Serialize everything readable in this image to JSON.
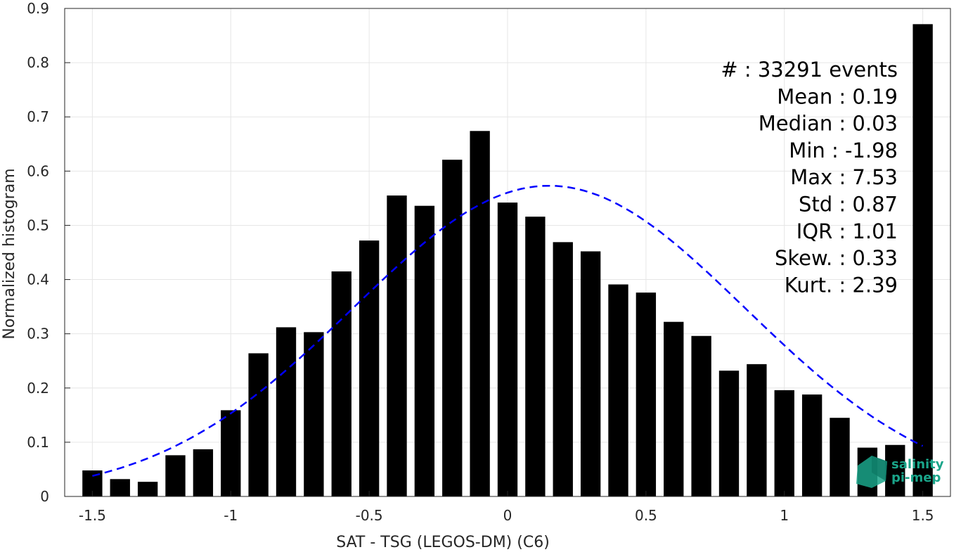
{
  "chart_data": {
    "type": "bar",
    "xlabel": "SAT - TSG (LEGOS-DM) (C6)",
    "ylabel": "Normalized histogram",
    "xlim": [
      -1.6,
      1.6
    ],
    "ylim": [
      0,
      0.9
    ],
    "grid": true,
    "x_ticks": [
      {
        "v": -1.5,
        "label": "-1.5"
      },
      {
        "v": -1,
        "label": "-1"
      },
      {
        "v": -0.5,
        "label": "-0.5"
      },
      {
        "v": 0,
        "label": "0"
      },
      {
        "v": 0.5,
        "label": "0.5"
      },
      {
        "v": 1,
        "label": "1"
      },
      {
        "v": 1.5,
        "label": "1.5"
      }
    ],
    "y_ticks": [
      {
        "v": 0,
        "label": "0"
      },
      {
        "v": 0.1,
        "label": "0.1"
      },
      {
        "v": 0.2,
        "label": "0.2"
      },
      {
        "v": 0.3,
        "label": "0.3"
      },
      {
        "v": 0.4,
        "label": "0.4"
      },
      {
        "v": 0.5,
        "label": "0.5"
      },
      {
        "v": 0.6,
        "label": "0.6"
      },
      {
        "v": 0.7,
        "label": "0.7"
      },
      {
        "v": 0.8,
        "label": "0.8"
      },
      {
        "v": 0.9,
        "label": "0.9"
      }
    ],
    "bin_width": 0.1,
    "bins": [
      {
        "x": -1.5,
        "y": 0.048
      },
      {
        "x": -1.4,
        "y": 0.032
      },
      {
        "x": -1.3,
        "y": 0.027
      },
      {
        "x": -1.2,
        "y": 0.076
      },
      {
        "x": -1.1,
        "y": 0.087
      },
      {
        "x": -1.0,
        "y": 0.159
      },
      {
        "x": -0.9,
        "y": 0.264
      },
      {
        "x": -0.8,
        "y": 0.312
      },
      {
        "x": -0.7,
        "y": 0.303
      },
      {
        "x": -0.6,
        "y": 0.415
      },
      {
        "x": -0.5,
        "y": 0.472
      },
      {
        "x": -0.4,
        "y": 0.555
      },
      {
        "x": -0.3,
        "y": 0.536
      },
      {
        "x": -0.2,
        "y": 0.621
      },
      {
        "x": -0.1,
        "y": 0.674
      },
      {
        "x": 0.0,
        "y": 0.542
      },
      {
        "x": 0.1,
        "y": 0.516
      },
      {
        "x": 0.2,
        "y": 0.469
      },
      {
        "x": 0.3,
        "y": 0.452
      },
      {
        "x": 0.4,
        "y": 0.391
      },
      {
        "x": 0.5,
        "y": 0.376
      },
      {
        "x": 0.6,
        "y": 0.322
      },
      {
        "x": 0.7,
        "y": 0.296
      },
      {
        "x": 0.8,
        "y": 0.232
      },
      {
        "x": 0.9,
        "y": 0.244
      },
      {
        "x": 1.0,
        "y": 0.196
      },
      {
        "x": 1.1,
        "y": 0.188
      },
      {
        "x": 1.2,
        "y": 0.145
      },
      {
        "x": 1.3,
        "y": 0.09
      },
      {
        "x": 1.4,
        "y": 0.095
      },
      {
        "x": 1.5,
        "y": 0.871
      }
    ],
    "bar_color": "#000000",
    "fit_curve": {
      "style": "dashed",
      "color": "#0000ff",
      "x_range": [
        -1.5,
        1.5
      ],
      "peak_x": 0.15,
      "peak_y": 0.573,
      "end_y": 0.093
    },
    "stats": [
      "#  : 33291 events",
      "Mean : 0.19",
      "Median : 0.03",
      "Min : -1.98",
      "Max : 7.53",
      "Std : 0.87",
      "IQR : 1.01",
      "Skew. : 0.33",
      "Kurt. : 2.39"
    ],
    "logo": {
      "line1": "salinity",
      "line2": "pi-mep",
      "color": "#1aa58a"
    }
  }
}
